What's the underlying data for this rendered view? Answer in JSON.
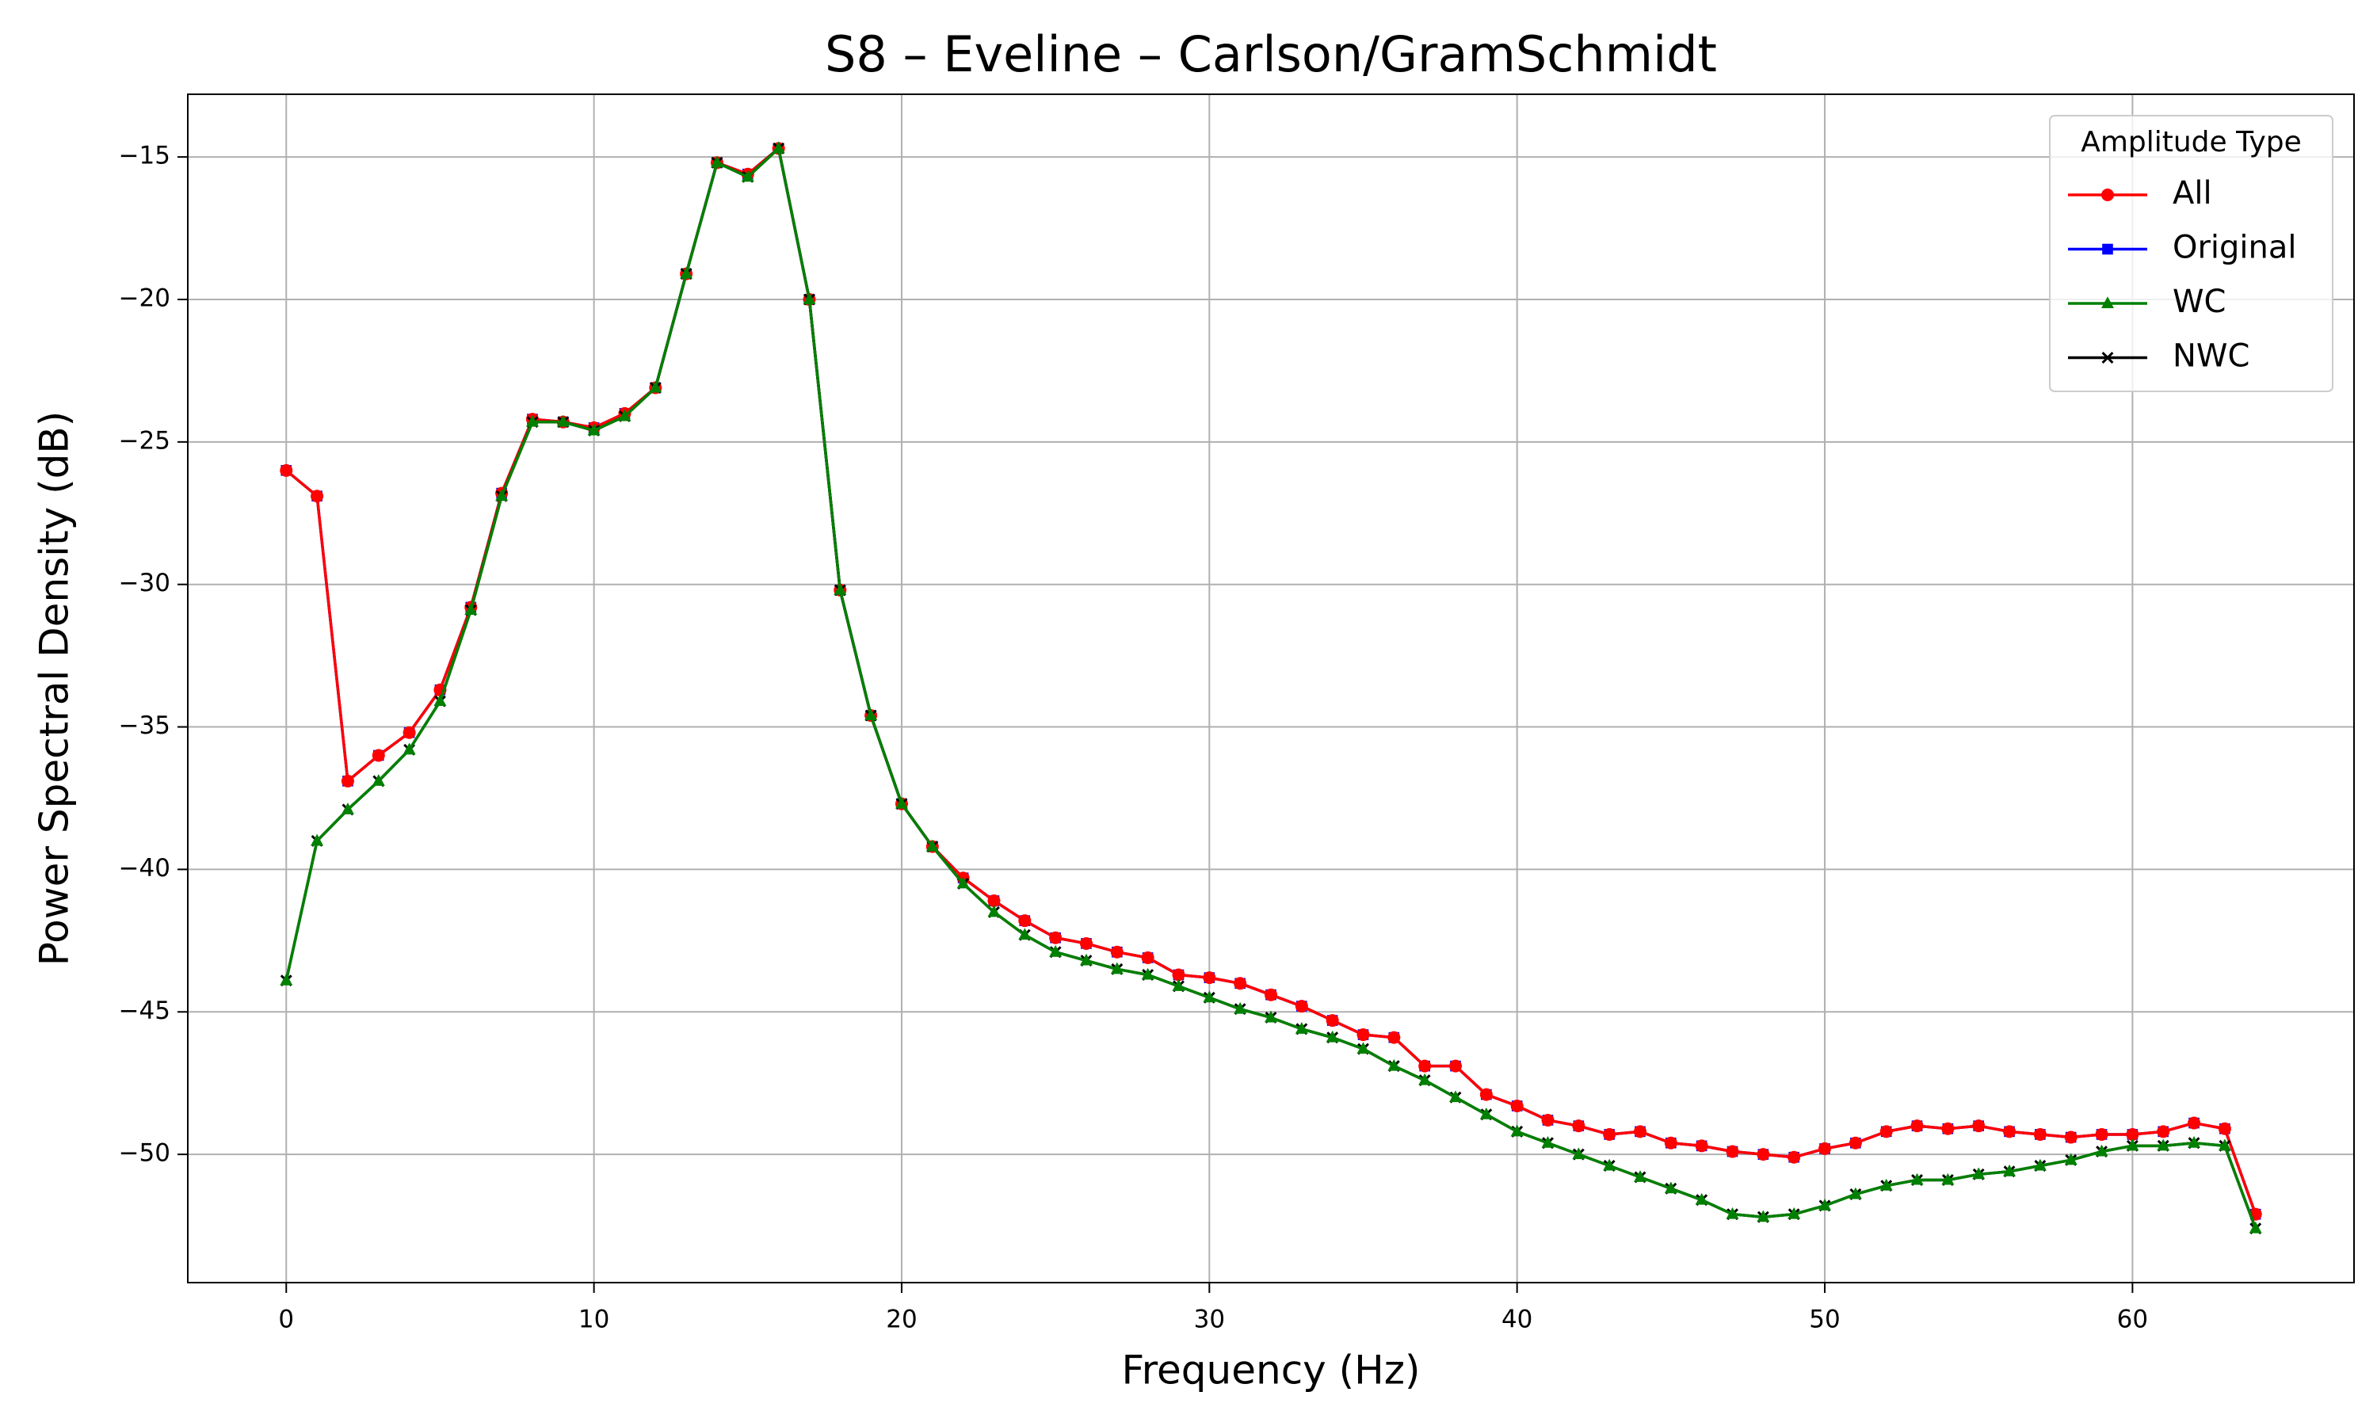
{
  "chart_data": {
    "type": "line",
    "title": "S8 – Eveline – Carlson/GramSchmidt",
    "x_label": "Frequency (Hz)",
    "y_label": "Power Spectral Density (dB)",
    "x": [
      0,
      1,
      2,
      3,
      4,
      5,
      6,
      7,
      8,
      9,
      10,
      11,
      12,
      13,
      14,
      15,
      16,
      17,
      18,
      19,
      20,
      21,
      22,
      23,
      24,
      25,
      26,
      27,
      28,
      29,
      30,
      31,
      32,
      33,
      34,
      35,
      36,
      37,
      38,
      39,
      40,
      41,
      42,
      43,
      44,
      45,
      46,
      47,
      48,
      49,
      50,
      51,
      52,
      53,
      54,
      55,
      56,
      57,
      58,
      59,
      60,
      61,
      62,
      63,
      64
    ],
    "series": [
      {
        "name": "All",
        "color": "#ff0000",
        "marker": "circle",
        "values": [
          -26.0,
          -26.9,
          -36.9,
          -36.0,
          -35.2,
          -33.7,
          -30.8,
          -26.8,
          -24.2,
          -24.3,
          -24.5,
          -24.0,
          -23.1,
          -19.1,
          -15.2,
          -15.6,
          -14.7,
          -20.0,
          -30.2,
          -34.6,
          -37.7,
          -39.2,
          -40.3,
          -41.1,
          -41.8,
          -42.4,
          -42.6,
          -42.9,
          -43.1,
          -43.7,
          -43.8,
          -44.0,
          -44.4,
          -44.8,
          -45.3,
          -45.8,
          -45.9,
          -46.9,
          -46.9,
          -47.9,
          -48.3,
          -48.8,
          -49.0,
          -49.3,
          -49.2,
          -49.6,
          -49.7,
          -49.9,
          -50.0,
          -50.1,
          -49.8,
          -49.6,
          -49.2,
          -49.0,
          -49.1,
          -49.0,
          -49.2,
          -49.3,
          -49.4,
          -49.3,
          -49.3,
          -49.2,
          -48.9,
          -49.1,
          -52.1
        ]
      },
      {
        "name": "Original",
        "color": "#0000ff",
        "marker": "square",
        "values": [
          -26.0,
          -26.9,
          -36.9,
          -36.0,
          -35.2,
          -33.7,
          -30.8,
          -26.8,
          -24.2,
          -24.3,
          -24.5,
          -24.0,
          -23.1,
          -19.1,
          -15.2,
          -15.6,
          -14.7,
          -20.0,
          -30.2,
          -34.6,
          -37.7,
          -39.2,
          -40.3,
          -41.1,
          -41.8,
          -42.4,
          -42.6,
          -42.9,
          -43.1,
          -43.7,
          -43.8,
          -44.0,
          -44.4,
          -44.8,
          -45.3,
          -45.8,
          -45.9,
          -46.9,
          -46.9,
          -47.9,
          -48.3,
          -48.8,
          -49.0,
          -49.3,
          -49.2,
          -49.6,
          -49.7,
          -49.9,
          -50.0,
          -50.1,
          -49.8,
          -49.6,
          -49.2,
          -49.0,
          -49.1,
          -49.0,
          -49.2,
          -49.3,
          -49.4,
          -49.3,
          -49.3,
          -49.2,
          -48.9,
          -49.1,
          -52.1
        ]
      },
      {
        "name": "WC",
        "color": "#008000",
        "marker": "triangle",
        "values": [
          -43.9,
          -39.0,
          -37.9,
          -36.9,
          -35.8,
          -34.1,
          -30.9,
          -26.9,
          -24.3,
          -24.3,
          -24.6,
          -24.1,
          -23.1,
          -19.1,
          -15.2,
          -15.7,
          -14.7,
          -20.0,
          -30.2,
          -34.6,
          -37.7,
          -39.2,
          -40.5,
          -41.5,
          -42.3,
          -42.9,
          -43.2,
          -43.5,
          -43.7,
          -44.1,
          -44.5,
          -44.9,
          -45.2,
          -45.6,
          -45.9,
          -46.3,
          -46.9,
          -47.4,
          -48.0,
          -48.6,
          -49.2,
          -49.6,
          -50.0,
          -50.4,
          -50.8,
          -51.2,
          -51.6,
          -52.1,
          -52.2,
          -52.1,
          -51.8,
          -51.4,
          -51.1,
          -50.9,
          -50.9,
          -50.7,
          -50.6,
          -50.4,
          -50.2,
          -49.9,
          -49.7,
          -49.7,
          -49.6,
          -49.7,
          -52.6
        ]
      },
      {
        "name": "NWC",
        "color": "#000000",
        "marker": "x",
        "values": [
          -43.9,
          -39.0,
          -37.9,
          -36.9,
          -35.8,
          -34.1,
          -30.9,
          -26.9,
          -24.3,
          -24.3,
          -24.6,
          -24.1,
          -23.1,
          -19.1,
          -15.2,
          -15.7,
          -14.7,
          -20.0,
          -30.2,
          -34.6,
          -37.7,
          -39.2,
          -40.5,
          -41.5,
          -42.3,
          -42.9,
          -43.2,
          -43.5,
          -43.7,
          -44.1,
          -44.5,
          -44.9,
          -45.2,
          -45.6,
          -45.9,
          -46.3,
          -46.9,
          -47.4,
          -48.0,
          -48.6,
          -49.2,
          -49.6,
          -50.0,
          -50.4,
          -50.8,
          -51.2,
          -51.6,
          -52.1,
          -52.2,
          -52.1,
          -51.8,
          -51.4,
          -51.1,
          -50.9,
          -50.9,
          -50.7,
          -50.6,
          -50.4,
          -50.2,
          -49.9,
          -49.7,
          -49.7,
          -49.6,
          -49.7,
          -52.6
        ]
      }
    ],
    "xlim": [
      -3.2,
      67.2
    ],
    "ylim": [
      -54.5,
      -12.8
    ],
    "xticks": [
      0,
      10,
      20,
      30,
      40,
      50,
      60
    ],
    "yticks": [
      {
        "value": -15,
        "label": "−15"
      },
      {
        "value": -20,
        "label": "−20"
      },
      {
        "value": -25,
        "label": "−25"
      },
      {
        "value": -30,
        "label": "−30"
      },
      {
        "value": -35,
        "label": "−35"
      },
      {
        "value": -40,
        "label": "−40"
      },
      {
        "value": -45,
        "label": "−45"
      },
      {
        "value": -50,
        "label": "−50"
      }
    ],
    "grid": true,
    "legend": {
      "title": "Amplitude Type",
      "position": "upper right"
    }
  }
}
